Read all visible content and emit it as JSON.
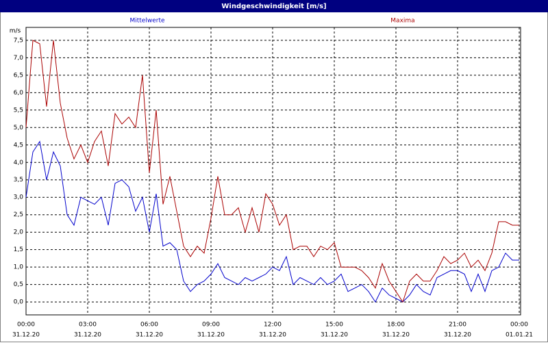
{
  "chart_data": {
    "type": "line",
    "title": "Windgeschwindigkeit [m/s]",
    "y_label": "m/s",
    "grid": true,
    "xlim": [
      0,
      1440
    ],
    "ylim": [
      -0.37,
      7.87
    ],
    "xticks": [
      {
        "value": 0,
        "label": "00:00",
        "date": "31.12.20"
      },
      {
        "value": 180,
        "label": "03:00",
        "date": "31.12.20"
      },
      {
        "value": 360,
        "label": "06:00",
        "date": "31.12.20"
      },
      {
        "value": 540,
        "label": "09:00",
        "date": "31.12.20"
      },
      {
        "value": 720,
        "label": "12:00",
        "date": "31.12.20"
      },
      {
        "value": 900,
        "label": "15:00",
        "date": "31.12.20"
      },
      {
        "value": 1080,
        "label": "18:00",
        "date": "31.12.20"
      },
      {
        "value": 1260,
        "label": "21:00",
        "date": "31.12.20"
      },
      {
        "value": 1440,
        "label": "00:00",
        "date": "01.01.21"
      }
    ],
    "yticks": [
      {
        "value": 0,
        "label": "0,0"
      },
      {
        "value": 0.5,
        "label": "0,5"
      },
      {
        "value": 1,
        "label": "1,0"
      },
      {
        "value": 1.5,
        "label": "1,5"
      },
      {
        "value": 2,
        "label": "2,0"
      },
      {
        "value": 2.5,
        "label": "2,5"
      },
      {
        "value": 3,
        "label": "3,0"
      },
      {
        "value": 3.5,
        "label": "3,5"
      },
      {
        "value": 4,
        "label": "4,0"
      },
      {
        "value": 4.5,
        "label": "4,5"
      },
      {
        "value": 5,
        "label": "5,0"
      },
      {
        "value": 5.5,
        "label": "5,5"
      },
      {
        "value": 6,
        "label": "6,0"
      },
      {
        "value": 6.5,
        "label": "6,5"
      },
      {
        "value": 7,
        "label": "7,0"
      },
      {
        "value": 7.5,
        "label": "7,5"
      }
    ],
    "x": [
      0,
      20,
      40,
      60,
      80,
      100,
      120,
      140,
      160,
      180,
      200,
      220,
      240,
      260,
      280,
      300,
      320,
      340,
      360,
      380,
      400,
      420,
      440,
      460,
      480,
      500,
      520,
      540,
      560,
      580,
      600,
      620,
      640,
      660,
      680,
      700,
      720,
      740,
      760,
      780,
      800,
      820,
      840,
      860,
      880,
      900,
      920,
      940,
      960,
      980,
      1000,
      1020,
      1040,
      1060,
      1080,
      1100,
      1120,
      1140,
      1160,
      1180,
      1200,
      1220,
      1240,
      1260,
      1280,
      1300,
      1320,
      1340,
      1360,
      1380,
      1400,
      1420,
      1440
    ],
    "series": [
      {
        "name": "Mittelwerte",
        "color": "#0000cc",
        "values": [
          3.0,
          4.3,
          4.6,
          3.5,
          4.3,
          3.9,
          2.5,
          2.2,
          3.0,
          2.9,
          2.8,
          3.0,
          2.2,
          3.4,
          3.5,
          3.3,
          2.6,
          3.0,
          2.0,
          3.1,
          1.6,
          1.7,
          1.5,
          0.6,
          0.3,
          0.5,
          0.6,
          0.8,
          1.1,
          0.7,
          0.6,
          0.5,
          0.7,
          0.6,
          0.7,
          0.8,
          1.0,
          0.9,
          1.3,
          0.5,
          0.7,
          0.6,
          0.5,
          0.7,
          0.5,
          0.6,
          0.8,
          0.3,
          0.4,
          0.5,
          0.3,
          0.0,
          0.4,
          0.2,
          0.1,
          0.0,
          0.2,
          0.5,
          0.3,
          0.2,
          0.7,
          0.8,
          0.9,
          0.9,
          0.8,
          0.3,
          0.8,
          0.3,
          0.9,
          1.0,
          1.4,
          1.2,
          1.2
        ]
      },
      {
        "name": "Maxima",
        "color": "#aa0000",
        "values": [
          5.0,
          7.5,
          7.4,
          5.6,
          7.5,
          5.7,
          4.7,
          4.1,
          4.5,
          4.0,
          4.6,
          4.9,
          3.9,
          5.4,
          5.1,
          5.3,
          5.0,
          6.5,
          3.7,
          5.5,
          2.8,
          3.6,
          2.6,
          1.6,
          1.3,
          1.6,
          1.4,
          2.4,
          3.6,
          2.5,
          2.5,
          2.7,
          2.0,
          2.7,
          2.0,
          3.1,
          2.8,
          2.2,
          2.5,
          1.5,
          1.6,
          1.6,
          1.3,
          1.6,
          1.5,
          1.7,
          1.0,
          1.0,
          1.0,
          0.9,
          0.7,
          0.4,
          1.1,
          0.6,
          0.3,
          0.0,
          0.6,
          0.8,
          0.6,
          0.6,
          0.9,
          1.3,
          1.1,
          1.2,
          1.4,
          1.0,
          1.2,
          0.9,
          1.4,
          2.3,
          2.3,
          2.2,
          2.2
        ]
      }
    ]
  }
}
